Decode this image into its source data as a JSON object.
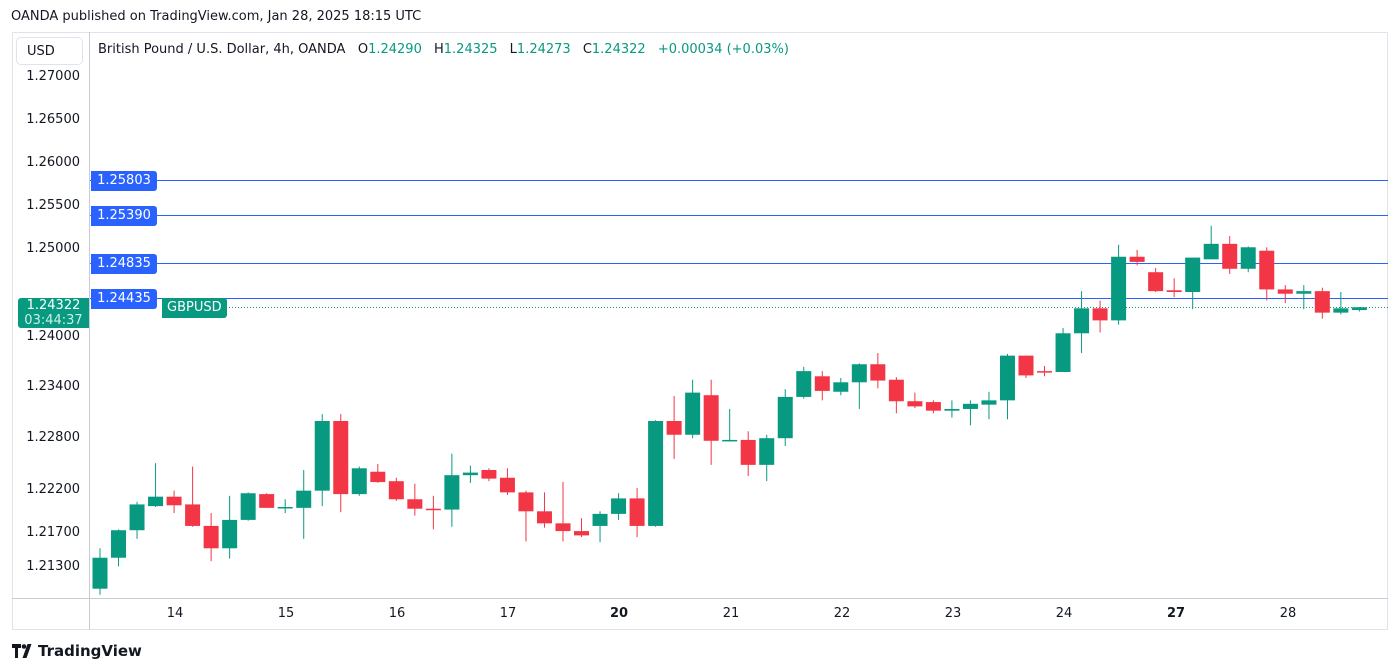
{
  "header": {
    "published": "OANDA published on TradingView.com, Jan 28, 2025 18:15 UTC"
  },
  "axis": {
    "currency": "USD",
    "ticks": [
      "1.27000",
      "1.26500",
      "1.26000",
      "1.25500",
      "1.25000",
      "1.24000",
      "1.23400",
      "1.22800",
      "1.22200",
      "1.21700",
      "1.21300"
    ]
  },
  "legend": {
    "title": "British Pound / U.S. Dollar, 4h, OANDA",
    "o_label": "O",
    "o": "1.24290",
    "h_label": "H",
    "h": "1.24325",
    "l_label": "L",
    "l": "1.24273",
    "c_label": "C",
    "c": "1.24322",
    "change": "+0.00034 (+0.03%)"
  },
  "levels": [
    "1.25803",
    "1.25390",
    "1.24835",
    "1.24435"
  ],
  "current": {
    "price": "1.24322",
    "countdown": "03:44:37",
    "symbol": "GBPUSD"
  },
  "days": [
    {
      "label": "14",
      "bold": false
    },
    {
      "label": "15",
      "bold": false
    },
    {
      "label": "16",
      "bold": false
    },
    {
      "label": "17",
      "bold": false
    },
    {
      "label": "20",
      "bold": true
    },
    {
      "label": "21",
      "bold": false
    },
    {
      "label": "22",
      "bold": false
    },
    {
      "label": "23",
      "bold": false
    },
    {
      "label": "24",
      "bold": false
    },
    {
      "label": "27",
      "bold": true
    },
    {
      "label": "28",
      "bold": false
    }
  ],
  "colors": {
    "up": "#089981",
    "down": "#f23645",
    "level": "#2962ff"
  },
  "footer": {
    "brand": "TradingView"
  },
  "chart_data": {
    "type": "candlestick",
    "title": "British Pound / U.S. Dollar, 4h, OANDA",
    "ylim": [
      1.2085,
      1.2725
    ],
    "ohlc": [
      [
        1.2105,
        1.2152,
        1.2098,
        1.2141
      ],
      [
        1.2141,
        1.2174,
        1.2131,
        1.2173
      ],
      [
        1.2173,
        1.2206,
        1.2163,
        1.2203
      ],
      [
        1.2201,
        1.2251,
        1.22,
        1.2212
      ],
      [
        1.2212,
        1.2219,
        1.2193,
        1.2202
      ],
      [
        1.2203,
        1.2247,
        1.2177,
        1.2178
      ],
      [
        1.2178,
        1.2193,
        1.2137,
        1.2152
      ],
      [
        1.2152,
        1.2213,
        1.214,
        1.2185
      ],
      [
        1.2185,
        1.2217,
        1.2184,
        1.2216
      ],
      [
        1.2215,
        1.2216,
        1.2199,
        1.2199
      ],
      [
        1.2199,
        1.2209,
        1.2193,
        1.22
      ],
      [
        1.2199,
        1.2243,
        1.2163,
        1.2219
      ],
      [
        1.2219,
        1.2308,
        1.2201,
        1.23
      ],
      [
        1.23,
        1.2308,
        1.2194,
        1.2215
      ],
      [
        1.2215,
        1.2247,
        1.2213,
        1.2245
      ],
      [
        1.2241,
        1.225,
        1.2228,
        1.2229
      ],
      [
        1.223,
        1.2234,
        1.2207,
        1.2209
      ],
      [
        1.2209,
        1.2227,
        1.219,
        1.2198
      ],
      [
        1.2198,
        1.2213,
        1.2174,
        1.2197
      ],
      [
        1.2197,
        1.2262,
        1.2177,
        1.2237
      ],
      [
        1.2237,
        1.2248,
        1.2228,
        1.224
      ],
      [
        1.2243,
        1.2245,
        1.223,
        1.2233
      ],
      [
        1.2234,
        1.2245,
        1.2214,
        1.2217
      ],
      [
        1.2217,
        1.2219,
        1.216,
        1.2195
      ],
      [
        1.2195,
        1.2217,
        1.2176,
        1.2181
      ],
      [
        1.2181,
        1.2229,
        1.216,
        1.2172
      ],
      [
        1.2172,
        1.2187,
        1.2165,
        1.2167
      ],
      [
        1.2178,
        1.2195,
        1.2159,
        1.2192
      ],
      [
        1.2192,
        1.2216,
        1.2185,
        1.221
      ],
      [
        1.221,
        1.2222,
        1.2165,
        1.2178
      ],
      [
        1.2178,
        1.2301,
        1.2177,
        1.23
      ],
      [
        1.23,
        1.2329,
        1.2256,
        1.2284
      ],
      [
        1.2284,
        1.2348,
        1.228,
        1.2333
      ],
      [
        1.233,
        1.2348,
        1.2249,
        1.2277
      ],
      [
        1.2277,
        1.2314,
        1.2276,
        1.2278
      ],
      [
        1.2278,
        1.2288,
        1.2236,
        1.2249
      ],
      [
        1.2249,
        1.2284,
        1.223,
        1.228
      ],
      [
        1.228,
        1.2337,
        1.2271,
        1.2328
      ],
      [
        1.2328,
        1.2363,
        1.2326,
        1.2358
      ],
      [
        1.2352,
        1.2358,
        1.2324,
        1.2335
      ],
      [
        1.2334,
        1.235,
        1.233,
        1.2345
      ],
      [
        1.2345,
        1.2367,
        1.2314,
        1.2366
      ],
      [
        1.2366,
        1.2379,
        1.2338,
        1.2347
      ],
      [
        1.2348,
        1.2351,
        1.2309,
        1.2323
      ],
      [
        1.2323,
        1.2333,
        1.2315,
        1.2317
      ],
      [
        1.2322,
        1.2324,
        1.2309,
        1.2312
      ],
      [
        1.2312,
        1.2324,
        1.2304,
        1.2314
      ],
      [
        1.2314,
        1.2324,
        1.2295,
        1.232
      ],
      [
        1.2319,
        1.2334,
        1.2302,
        1.2324
      ],
      [
        1.2324,
        1.2378,
        1.2302,
        1.2376
      ],
      [
        1.2376,
        1.2376,
        1.235,
        1.2353
      ],
      [
        1.2358,
        1.2364,
        1.2352,
        1.2357
      ],
      [
        1.2357,
        1.2408,
        1.2357,
        1.2402
      ],
      [
        1.2402,
        1.2451,
        1.2379,
        1.2431
      ],
      [
        1.2431,
        1.244,
        1.2403,
        1.2417
      ],
      [
        1.2417,
        1.2505,
        1.2412,
        1.2491
      ],
      [
        1.2491,
        1.2499,
        1.2481,
        1.2485
      ],
      [
        1.2473,
        1.2478,
        1.245,
        1.2451
      ],
      [
        1.2452,
        1.2466,
        1.2444,
        1.245
      ],
      [
        1.245,
        1.249,
        1.243,
        1.249
      ],
      [
        1.2488,
        1.2527,
        1.2488,
        1.2506
      ],
      [
        1.2506,
        1.2515,
        1.2471,
        1.2477
      ],
      [
        1.2477,
        1.2503,
        1.2473,
        1.2502
      ],
      [
        1.2498,
        1.2502,
        1.244,
        1.2453
      ],
      [
        1.2453,
        1.2458,
        1.2437,
        1.2448
      ],
      [
        1.2448,
        1.2458,
        1.243,
        1.2451
      ],
      [
        1.2451,
        1.2455,
        1.2419,
        1.2426
      ],
      [
        1.2426,
        1.245,
        1.2424,
        1.2431
      ],
      [
        1.2429,
        1.24325,
        1.24273,
        1.24322
      ]
    ]
  }
}
